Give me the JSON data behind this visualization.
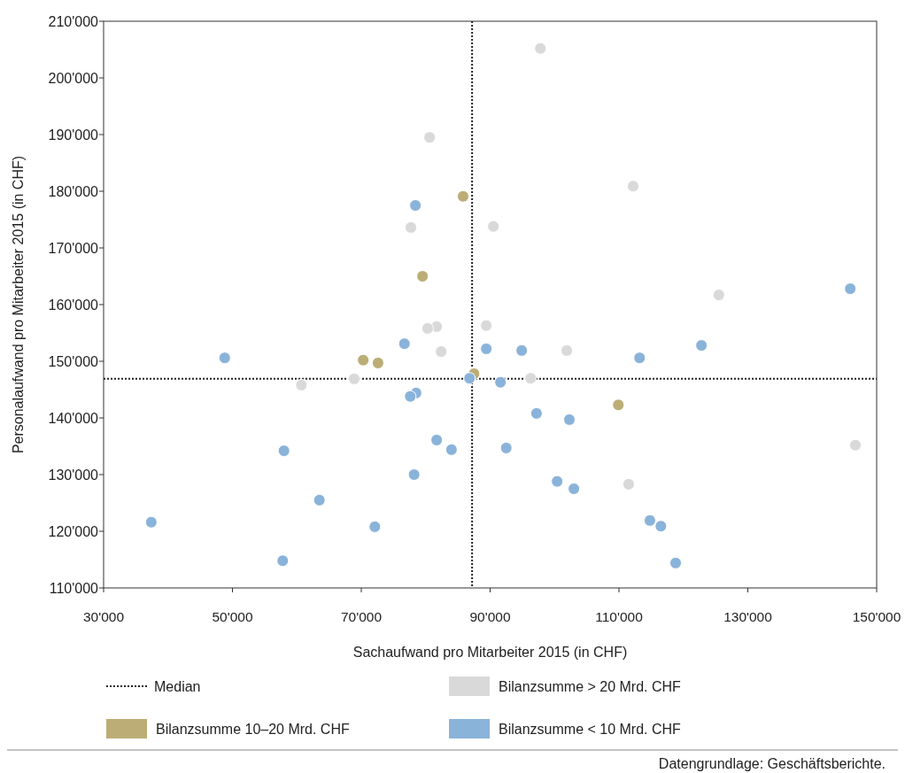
{
  "chart_data": {
    "type": "scatter",
    "xlabel": "Sachaufwand pro Mitarbeiter 2015 (in CHF)",
    "ylabel": "Personalaufwand pro Mitarbeiter 2015 (in CHF)",
    "xlim": [
      30000,
      150000
    ],
    "ylim": [
      110000,
      210000
    ],
    "xticks": [
      {
        "value": 30000,
        "label": "30'000"
      },
      {
        "value": 50000,
        "label": "50'000"
      },
      {
        "value": 70000,
        "label": "70'000"
      },
      {
        "value": 90000,
        "label": "90'000"
      },
      {
        "value": 110000,
        "label": "110'000"
      },
      {
        "value": 130000,
        "label": "130'000"
      },
      {
        "value": 150000,
        "label": "150'000"
      }
    ],
    "yticks": [
      {
        "value": 110000,
        "label": "110'000"
      },
      {
        "value": 120000,
        "label": "120'000"
      },
      {
        "value": 130000,
        "label": "130'000"
      },
      {
        "value": 140000,
        "label": "140'000"
      },
      {
        "value": 150000,
        "label": "150'000"
      },
      {
        "value": 160000,
        "label": "160'000"
      },
      {
        "value": 170000,
        "label": "170'000"
      },
      {
        "value": 180000,
        "label": "180'000"
      },
      {
        "value": 190000,
        "label": "190'000"
      },
      {
        "value": 200000,
        "label": "200'000"
      },
      {
        "value": 210000,
        "label": "210'000"
      }
    ],
    "grid": false,
    "legend": "bottom",
    "marker": "circle",
    "ref_lines": [
      {
        "axis": "x",
        "value": 87200,
        "label": "Median",
        "line_style": "dotted",
        "color": "#222222"
      },
      {
        "axis": "y",
        "value": 146900,
        "line_style": "dotted",
        "color": "#222222"
      }
    ],
    "series": [
      {
        "name": "Bilanzsumme > 20 Mrd. CHF",
        "color": "#d9d9d9",
        "x": [
          97800,
          80600,
          112200,
          77700,
          90500,
          125500,
          89400,
          81700,
          80300,
          82400,
          101900,
          60700,
          68900,
          96300,
          146700,
          111500
        ],
        "values": [
          205200,
          189500,
          180900,
          173600,
          173800,
          161700,
          156300,
          156100,
          155800,
          151700,
          151900,
          145800,
          146900,
          147000,
          135200,
          128300
        ]
      },
      {
        "name": "Bilanzsumme 10–20 Mrd. CHF",
        "color": "#bcad76",
        "x": [
          85800,
          79500,
          70300,
          72600,
          87500,
          109900
        ],
        "values": [
          179100,
          165000,
          150200,
          149700,
          147800,
          142300
        ]
      },
      {
        "name": "Bilanzsumme < 10 Mrd. CHF",
        "color": "#8ab3da",
        "x": [
          78400,
          145900,
          122800,
          76700,
          89400,
          94900,
          113200,
          48800,
          86800,
          91600,
          78500,
          77600,
          97200,
          102300,
          81700,
          84000,
          92500,
          58000,
          78200,
          100400,
          103000,
          63500,
          72100,
          37400,
          114800,
          116500,
          57800,
          118800
        ],
        "values": [
          177500,
          162800,
          152800,
          153100,
          152200,
          151900,
          150600,
          150600,
          147000,
          146300,
          144400,
          143800,
          140800,
          139700,
          136100,
          134400,
          134700,
          134200,
          130000,
          128800,
          127500,
          125500,
          120800,
          121600,
          121900,
          120900,
          114800,
          114400
        ]
      }
    ],
    "annotations": [
      "Datengrundlage: Geschäftsberichte."
    ]
  }
}
